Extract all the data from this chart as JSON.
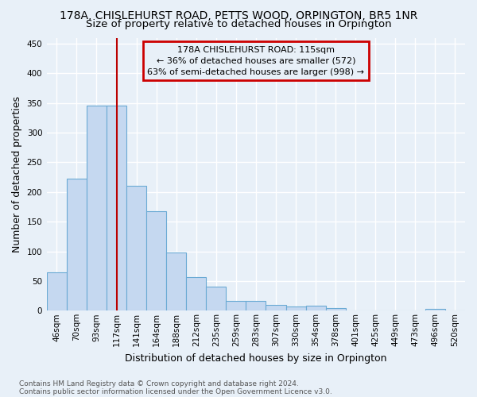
{
  "title": "178A, CHISLEHURST ROAD, PETTS WOOD, ORPINGTON, BR5 1NR",
  "subtitle": "Size of property relative to detached houses in Orpington",
  "xlabel": "Distribution of detached houses by size in Orpington",
  "ylabel": "Number of detached properties",
  "bar_labels": [
    "46sqm",
    "70sqm",
    "93sqm",
    "117sqm",
    "141sqm",
    "164sqm",
    "188sqm",
    "212sqm",
    "235sqm",
    "259sqm",
    "283sqm",
    "307sqm",
    "330sqm",
    "354sqm",
    "378sqm",
    "401sqm",
    "425sqm",
    "449sqm",
    "473sqm",
    "496sqm",
    "520sqm"
  ],
  "bar_values": [
    65,
    222,
    345,
    345,
    210,
    168,
    98,
    56,
    41,
    16,
    16,
    10,
    7,
    8,
    4,
    0,
    0,
    0,
    0,
    3,
    0
  ],
  "bar_color": "#c5d8f0",
  "bar_edge_color": "#6aaad4",
  "background_color": "#e8f0f8",
  "grid_color": "#ffffff",
  "vline_x_index": 3,
  "vline_color": "#bb0000",
  "annotation_line1": "178A CHISLEHURST ROAD: 115sqm",
  "annotation_line2": "← 36% of detached houses are smaller (572)",
  "annotation_line3": "63% of semi-detached houses are larger (998) →",
  "annotation_box_color": "#cc0000",
  "footer_text": "Contains HM Land Registry data © Crown copyright and database right 2024.\nContains public sector information licensed under the Open Government Licence v3.0.",
  "ylim": [
    0,
    460
  ],
  "yticks": [
    0,
    50,
    100,
    150,
    200,
    250,
    300,
    350,
    400,
    450
  ],
  "title_fontsize": 10,
  "subtitle_fontsize": 9.5,
  "tick_fontsize": 7.5,
  "label_fontsize": 9,
  "annotation_fontsize": 8,
  "footer_fontsize": 6.5
}
